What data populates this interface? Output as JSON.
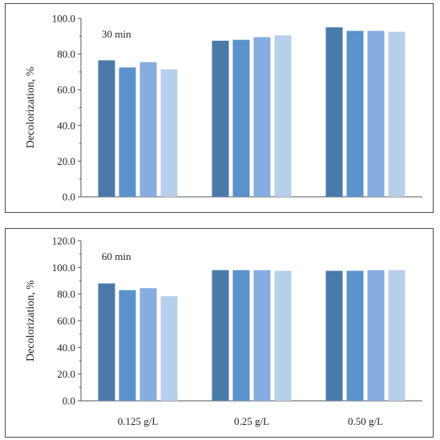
{
  "chart_data": [
    {
      "type": "bar",
      "panel_label": "30 min",
      "ylabel": "Decolorization, %",
      "ylim": [
        0,
        100
      ],
      "yticks": [
        "0.0",
        "20.0",
        "40.0",
        "60.0",
        "80.0",
        "100.0"
      ],
      "categories": [
        "0.125 g/L",
        "0.25 g/L",
        "0.50 g/L"
      ],
      "show_category_labels": false,
      "series": [
        {
          "color": "#4a7aaa",
          "values": [
            76.5,
            87.5,
            95.0
          ]
        },
        {
          "color": "#5a93cc",
          "values": [
            72.5,
            88.0,
            93.0
          ]
        },
        {
          "color": "#86ade0",
          "values": [
            75.5,
            89.5,
            93.0
          ]
        },
        {
          "color": "#b8cfeb",
          "values": [
            71.5,
            90.5,
            92.5
          ]
        }
      ]
    },
    {
      "type": "bar",
      "panel_label": "60 min",
      "ylabel": "Decolorization, %",
      "ylim": [
        0,
        120
      ],
      "yticks": [
        "0.0",
        "20.0",
        "40.0",
        "60.0",
        "80.0",
        "100.0",
        "120.0"
      ],
      "categories": [
        "0.125 g/L",
        "0.25 g/L",
        "0.50 g/L"
      ],
      "show_category_labels": true,
      "series": [
        {
          "color": "#4a7aaa",
          "values": [
            88.0,
            98.0,
            97.5
          ]
        },
        {
          "color": "#5a93cc",
          "values": [
            83.0,
            98.0,
            97.5
          ]
        },
        {
          "color": "#86ade0",
          "values": [
            84.5,
            98.0,
            98.0
          ]
        },
        {
          "color": "#b8cfeb",
          "values": [
            78.5,
            97.5,
            98.0
          ]
        }
      ]
    }
  ]
}
